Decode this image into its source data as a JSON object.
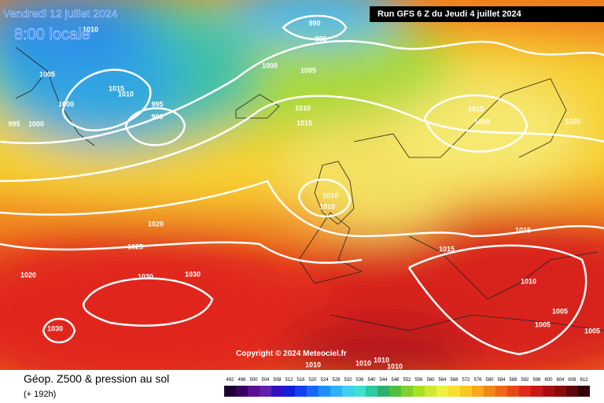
{
  "header": {
    "date": "Vendredi 12 juillet 2024",
    "time": "8:00 locale",
    "run": "Run GFS 6 Z du Jeudi 4 juillet 2024"
  },
  "copyright": "Copyright © 2024 Meteociel.fr",
  "footer": {
    "title": "Géop. Z500 & pression au sol",
    "lead": "(+ 192h)"
  },
  "isobar_labels": [
    "1010",
    "1005",
    "1005",
    "995",
    "990",
    "1000",
    "1015",
    "1010",
    "1000",
    "995",
    "990",
    "995",
    "1000",
    "1010",
    "1015",
    "1015",
    "1010",
    "1020",
    "1010",
    "1010",
    "1020",
    "1025",
    "1020",
    "1030",
    "1030",
    "1030",
    "1015",
    "1015",
    "1010",
    "1005",
    "1005",
    "1005",
    "1010",
    "1010",
    "1010",
    "1010"
  ],
  "legend": {
    "values": [
      492,
      496,
      500,
      504,
      508,
      512,
      516,
      520,
      524,
      528,
      532,
      536,
      540,
      544,
      548,
      552,
      556,
      560,
      564,
      568,
      572,
      576,
      580,
      584,
      588,
      592,
      596,
      600,
      604,
      608,
      612
    ]
  }
}
